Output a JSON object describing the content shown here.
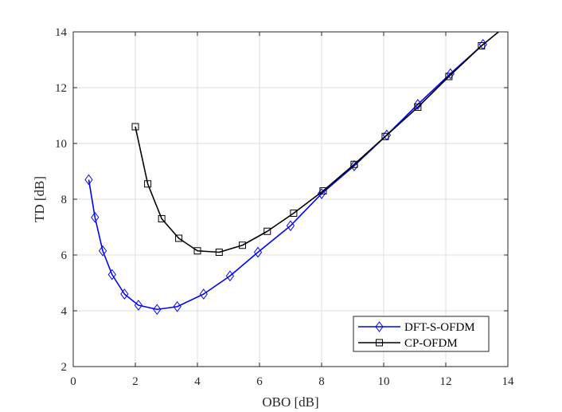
{
  "chart_data": {
    "type": "line",
    "xlabel": "OBO [dB]",
    "ylabel": "TD [dB]",
    "xlim": [
      0,
      14
    ],
    "ylim": [
      2,
      14
    ],
    "xticks": [
      "0",
      "2",
      "4",
      "6",
      "8",
      "10",
      "12",
      "14"
    ],
    "yticks": [
      "2",
      "4",
      "6",
      "8",
      "10",
      "12",
      "14"
    ],
    "grid": true,
    "legend_position": "bottom-right",
    "series": [
      {
        "name": "DFT-S-OFDM",
        "color": "#0000ff",
        "marker": "diamond",
        "x": [
          0.5,
          0.7,
          0.95,
          1.25,
          1.65,
          2.1,
          2.7,
          3.35,
          4.2,
          5.05,
          5.95,
          7.0,
          8.0,
          9.05,
          10.1,
          11.1,
          12.15,
          13.2
        ],
        "y": [
          8.7,
          7.35,
          6.15,
          5.3,
          4.6,
          4.2,
          4.05,
          4.15,
          4.6,
          5.25,
          6.1,
          7.05,
          8.2,
          9.2,
          10.3,
          11.4,
          12.5,
          13.55
        ]
      },
      {
        "name": "CP-OFDM",
        "color": "#000000",
        "marker": "square",
        "x": [
          2.0,
          2.4,
          2.85,
          3.4,
          4.0,
          4.7,
          5.45,
          6.25,
          7.1,
          8.05,
          9.05,
          10.05,
          11.1,
          12.1,
          13.15
        ],
        "y": [
          10.6,
          8.55,
          7.3,
          6.6,
          6.15,
          6.1,
          6.35,
          6.85,
          7.5,
          8.3,
          9.25,
          10.25,
          11.3,
          12.4,
          13.5
        ]
      }
    ]
  }
}
